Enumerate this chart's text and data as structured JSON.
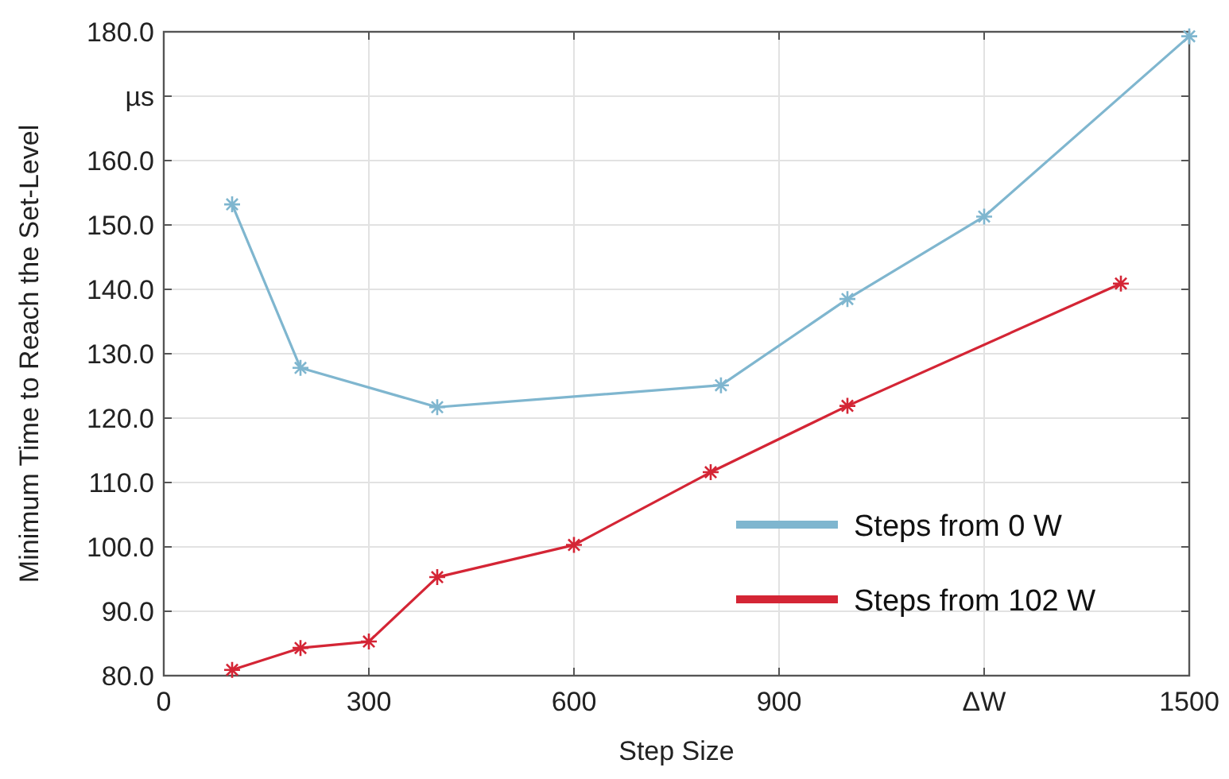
{
  "chart_data": {
    "type": "line",
    "xlabel": "Step Size",
    "ylabel": "Minimum Time to Reach the Set-Level",
    "xlim": [
      0,
      1500
    ],
    "xticks": [
      0,
      300,
      600,
      900,
      {
        "value": 1200,
        "label": "ΔW"
      },
      1500
    ],
    "ylim": [
      80,
      180
    ],
    "yticks": [
      {
        "value": 80,
        "label": "80.0"
      },
      {
        "value": 90,
        "label": "90.0"
      },
      {
        "value": 100,
        "label": "100.0"
      },
      {
        "value": 110,
        "label": "110.0"
      },
      {
        "value": 120,
        "label": "120.0"
      },
      {
        "value": 130,
        "label": "130.0"
      },
      {
        "value": 140,
        "label": "140.0"
      },
      {
        "value": 150,
        "label": "150.0"
      },
      {
        "value": 160,
        "label": "160.0"
      },
      {
        "value": 170,
        "label": "µs"
      },
      {
        "value": 180,
        "label": "180.0"
      }
    ],
    "grid": true,
    "legend": "bottom right",
    "marker": "cross",
    "line_style": "solid",
    "series": [
      {
        "name": "Steps from 0 W",
        "color": "#7fb6cf",
        "x": [
          100,
          200,
          400,
          815,
          1000,
          1200,
          1500
        ],
        "values": [
          153.2,
          127.8,
          121.7,
          125.1,
          138.5,
          151.3,
          179.3
        ]
      },
      {
        "name": "Steps from 102 W",
        "color": "#d42535",
        "x": [
          100,
          200,
          300,
          400,
          600,
          800,
          1000,
          1400
        ],
        "values": [
          80.9,
          84.3,
          85.3,
          95.3,
          100.3,
          111.6,
          121.9,
          140.9
        ]
      }
    ]
  }
}
